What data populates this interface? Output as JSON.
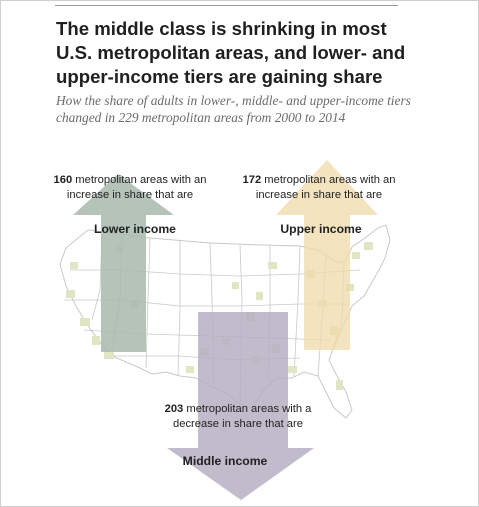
{
  "title": "The middle class is shrinking in most U.S. metropolitan areas, and lower- and upper-income tiers are gaining share",
  "subtitle": "How the share of adults in lower-, middle- and upper-income tiers changed in 229 metropolitan areas from 2000 to 2014",
  "lower": {
    "count": "160",
    "text": " metropolitan areas with an increase in share that are",
    "label": "Lower income",
    "color": "#a8b8ad",
    "direction": "up"
  },
  "upper": {
    "count": "172",
    "text": " metropolitan areas with an increase in share that are",
    "label": "Upper income",
    "color": "#efd9a8",
    "direction": "up"
  },
  "middle": {
    "count": "203",
    "text": " metropolitan areas with a decrease in share that are",
    "label": "Middle income",
    "color": "#b5acc0",
    "direction": "down"
  },
  "map": {
    "fill": "#ffffff",
    "stroke": "#c9c9c9",
    "metro_fill": "#dfe6c4"
  }
}
